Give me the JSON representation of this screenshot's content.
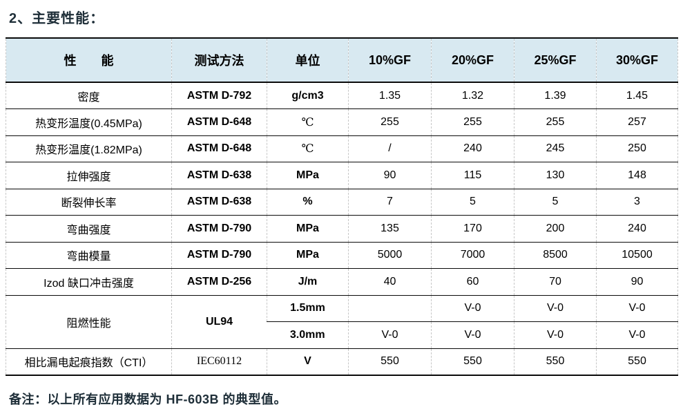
{
  "page": {
    "title": "2、主要性能：",
    "note": "备注：以上所有应用数据为 HF-603B 的典型值。"
  },
  "colors": {
    "header_bg": "#d8e9f1",
    "row_rule": "#0a0a0a",
    "column_rule_dashed": "#c6c6c6",
    "heading_text": "#1e2e38",
    "body_text": "#000000"
  },
  "table": {
    "headers": [
      "性　　能",
      "测试方法",
      "单位",
      "10%GF",
      "20%GF",
      "25%GF",
      "30%GF"
    ],
    "rows": [
      {
        "property": "密度",
        "method": "ASTM D-792",
        "unit": "g/cm3",
        "values": [
          "1.35",
          "1.32",
          "1.39",
          "1.45"
        ]
      },
      {
        "property": "热变形温度(0.45MPa)",
        "method": "ASTM D-648",
        "unit": "℃",
        "unit_serif": true,
        "values": [
          "255",
          "255",
          "255",
          "257"
        ]
      },
      {
        "property": "热变形温度(1.82MPa)",
        "method": "ASTM D-648",
        "unit": "℃",
        "unit_serif": true,
        "values": [
          "/",
          "240",
          "245",
          "250"
        ]
      },
      {
        "property": "拉伸强度",
        "method": "ASTM D-638",
        "unit": "MPa",
        "values": [
          "90",
          "115",
          "130",
          "148"
        ]
      },
      {
        "property": "断裂伸长率",
        "method": "ASTM D-638",
        "unit": "%",
        "values": [
          "7",
          "5",
          "5",
          "3"
        ]
      },
      {
        "property": "弯曲强度",
        "method": "ASTM D-790",
        "unit": "MPa",
        "values": [
          "135",
          "170",
          "200",
          "240"
        ]
      },
      {
        "property": "弯曲模量",
        "method": "ASTM D-790",
        "unit": "MPa",
        "values": [
          "5000",
          "7000",
          "8500",
          "10500"
        ]
      },
      {
        "property": "Izod 缺口冲击强度",
        "method": "ASTM D-256",
        "unit": "J/m",
        "values": [
          "40",
          "60",
          "70",
          "90"
        ]
      },
      {
        "property": "阻燃性能",
        "method": "UL94",
        "rowspan": 2,
        "unit": "1.5mm",
        "values": [
          "",
          "V-0",
          "V-0",
          "V-0"
        ]
      },
      {
        "merged": true,
        "unit": "3.0mm",
        "values": [
          "V-0",
          "V-0",
          "V-0",
          "V-0"
        ]
      },
      {
        "property": "相比漏电起痕指数（CTI）",
        "method": "IEC60112",
        "method_serif": true,
        "unit": "V",
        "values": [
          "550",
          "550",
          "550",
          "550"
        ]
      }
    ]
  }
}
